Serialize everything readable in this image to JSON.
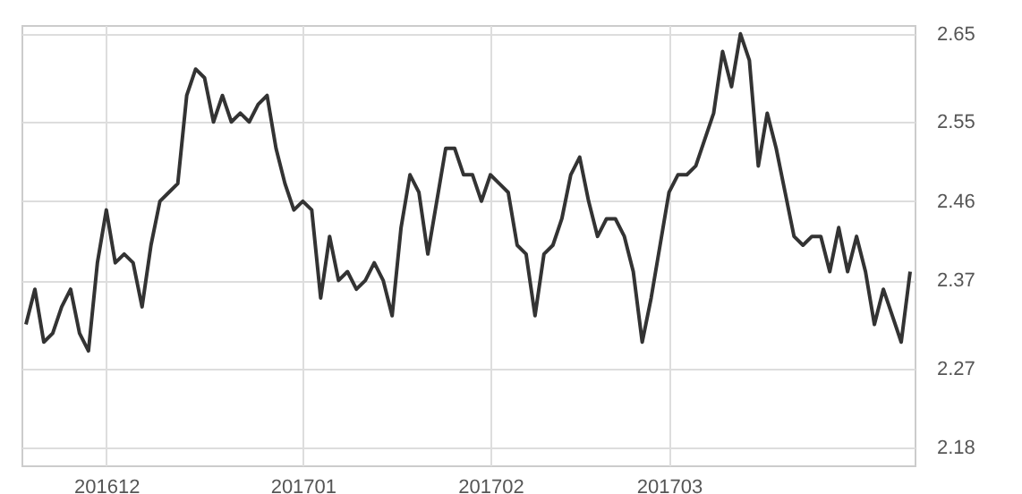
{
  "chart_data": {
    "type": "line",
    "categories": [
      null,
      null,
      null,
      null,
      null,
      null,
      null,
      null,
      null,
      "201612",
      null,
      null,
      null,
      null,
      null,
      null,
      null,
      null,
      null,
      null,
      null,
      null,
      null,
      null,
      null,
      null,
      null,
      null,
      null,
      null,
      null,
      "201701",
      null,
      null,
      null,
      null,
      null,
      null,
      null,
      null,
      null,
      null,
      null,
      null,
      null,
      null,
      null,
      null,
      null,
      null,
      null,
      null,
      "201702",
      null,
      null,
      null,
      null,
      null,
      null,
      null,
      null,
      null,
      null,
      null,
      null,
      null,
      null,
      null,
      null,
      null,
      null,
      null,
      "201703",
      null,
      null,
      null,
      null,
      null,
      null,
      null,
      null,
      null,
      null,
      null,
      null,
      null,
      null,
      null,
      null,
      null,
      null,
      null,
      null,
      null,
      null,
      null,
      null,
      null,
      null,
      null
    ],
    "series": [
      {
        "color": "#333333",
        "values": [
          2.32,
          2.36,
          2.3,
          2.31,
          2.34,
          2.36,
          2.31,
          2.29,
          2.39,
          2.45,
          2.39,
          2.4,
          2.39,
          2.34,
          2.41,
          2.46,
          2.47,
          2.48,
          2.58,
          2.61,
          2.6,
          2.55,
          2.58,
          2.55,
          2.56,
          2.55,
          2.57,
          2.58,
          2.52,
          2.48,
          2.45,
          2.46,
          2.45,
          2.35,
          2.42,
          2.37,
          2.38,
          2.36,
          2.37,
          2.39,
          2.37,
          2.33,
          2.43,
          2.49,
          2.47,
          2.4,
          2.46,
          2.52,
          2.52,
          2.49,
          2.49,
          2.46,
          2.49,
          2.48,
          2.47,
          2.41,
          2.4,
          2.33,
          2.4,
          2.41,
          2.44,
          2.49,
          2.51,
          2.46,
          2.42,
          2.44,
          2.44,
          2.42,
          2.38,
          2.3,
          2.35,
          2.41,
          2.47,
          2.49,
          2.49,
          2.5,
          2.53,
          2.56,
          2.63,
          2.59,
          2.65,
          2.62,
          2.5,
          2.56,
          2.52,
          2.47,
          2.42,
          2.41,
          2.42,
          2.42,
          2.38,
          2.43,
          2.38,
          2.42,
          2.38,
          2.32,
          2.36,
          2.33,
          2.3,
          2.38
        ]
      }
    ],
    "ylim": [
      2.16,
      2.66
    ],
    "yticks": [
      {
        "value": 2.18,
        "label": "2.18"
      },
      {
        "value": 2.27,
        "label": "2.27"
      },
      {
        "value": 2.37,
        "label": "2.37"
      },
      {
        "value": 2.46,
        "label": "2.46"
      },
      {
        "value": 2.55,
        "label": "2.55"
      },
      {
        "value": 2.65,
        "label": "2.65"
      }
    ],
    "grid": true,
    "line_style": "solid"
  }
}
